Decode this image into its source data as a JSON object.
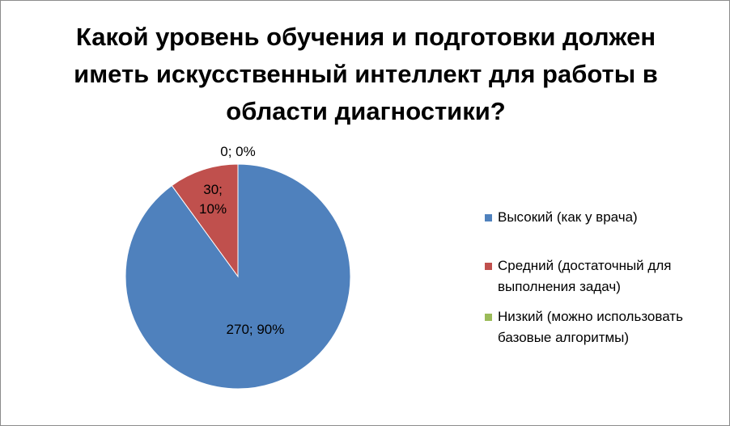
{
  "chart_data": {
    "type": "pie",
    "title": "Какой уровень обучения и подготовки должен иметь искусственный интеллект для работы в области диагностики?",
    "categories": [
      "Высокий (как у врача)",
      "Средний (достаточный для выполнения задач)",
      "Низкий (можно использовать базовые алгоритмы)"
    ],
    "values": [
      270,
      30,
      0
    ],
    "value_labels": [
      "270; 90%",
      "30; 10%",
      "0; 0%"
    ],
    "colors": [
      "#4f81bd",
      "#c0504d",
      "#9bbb59"
    ],
    "legend": "right"
  }
}
